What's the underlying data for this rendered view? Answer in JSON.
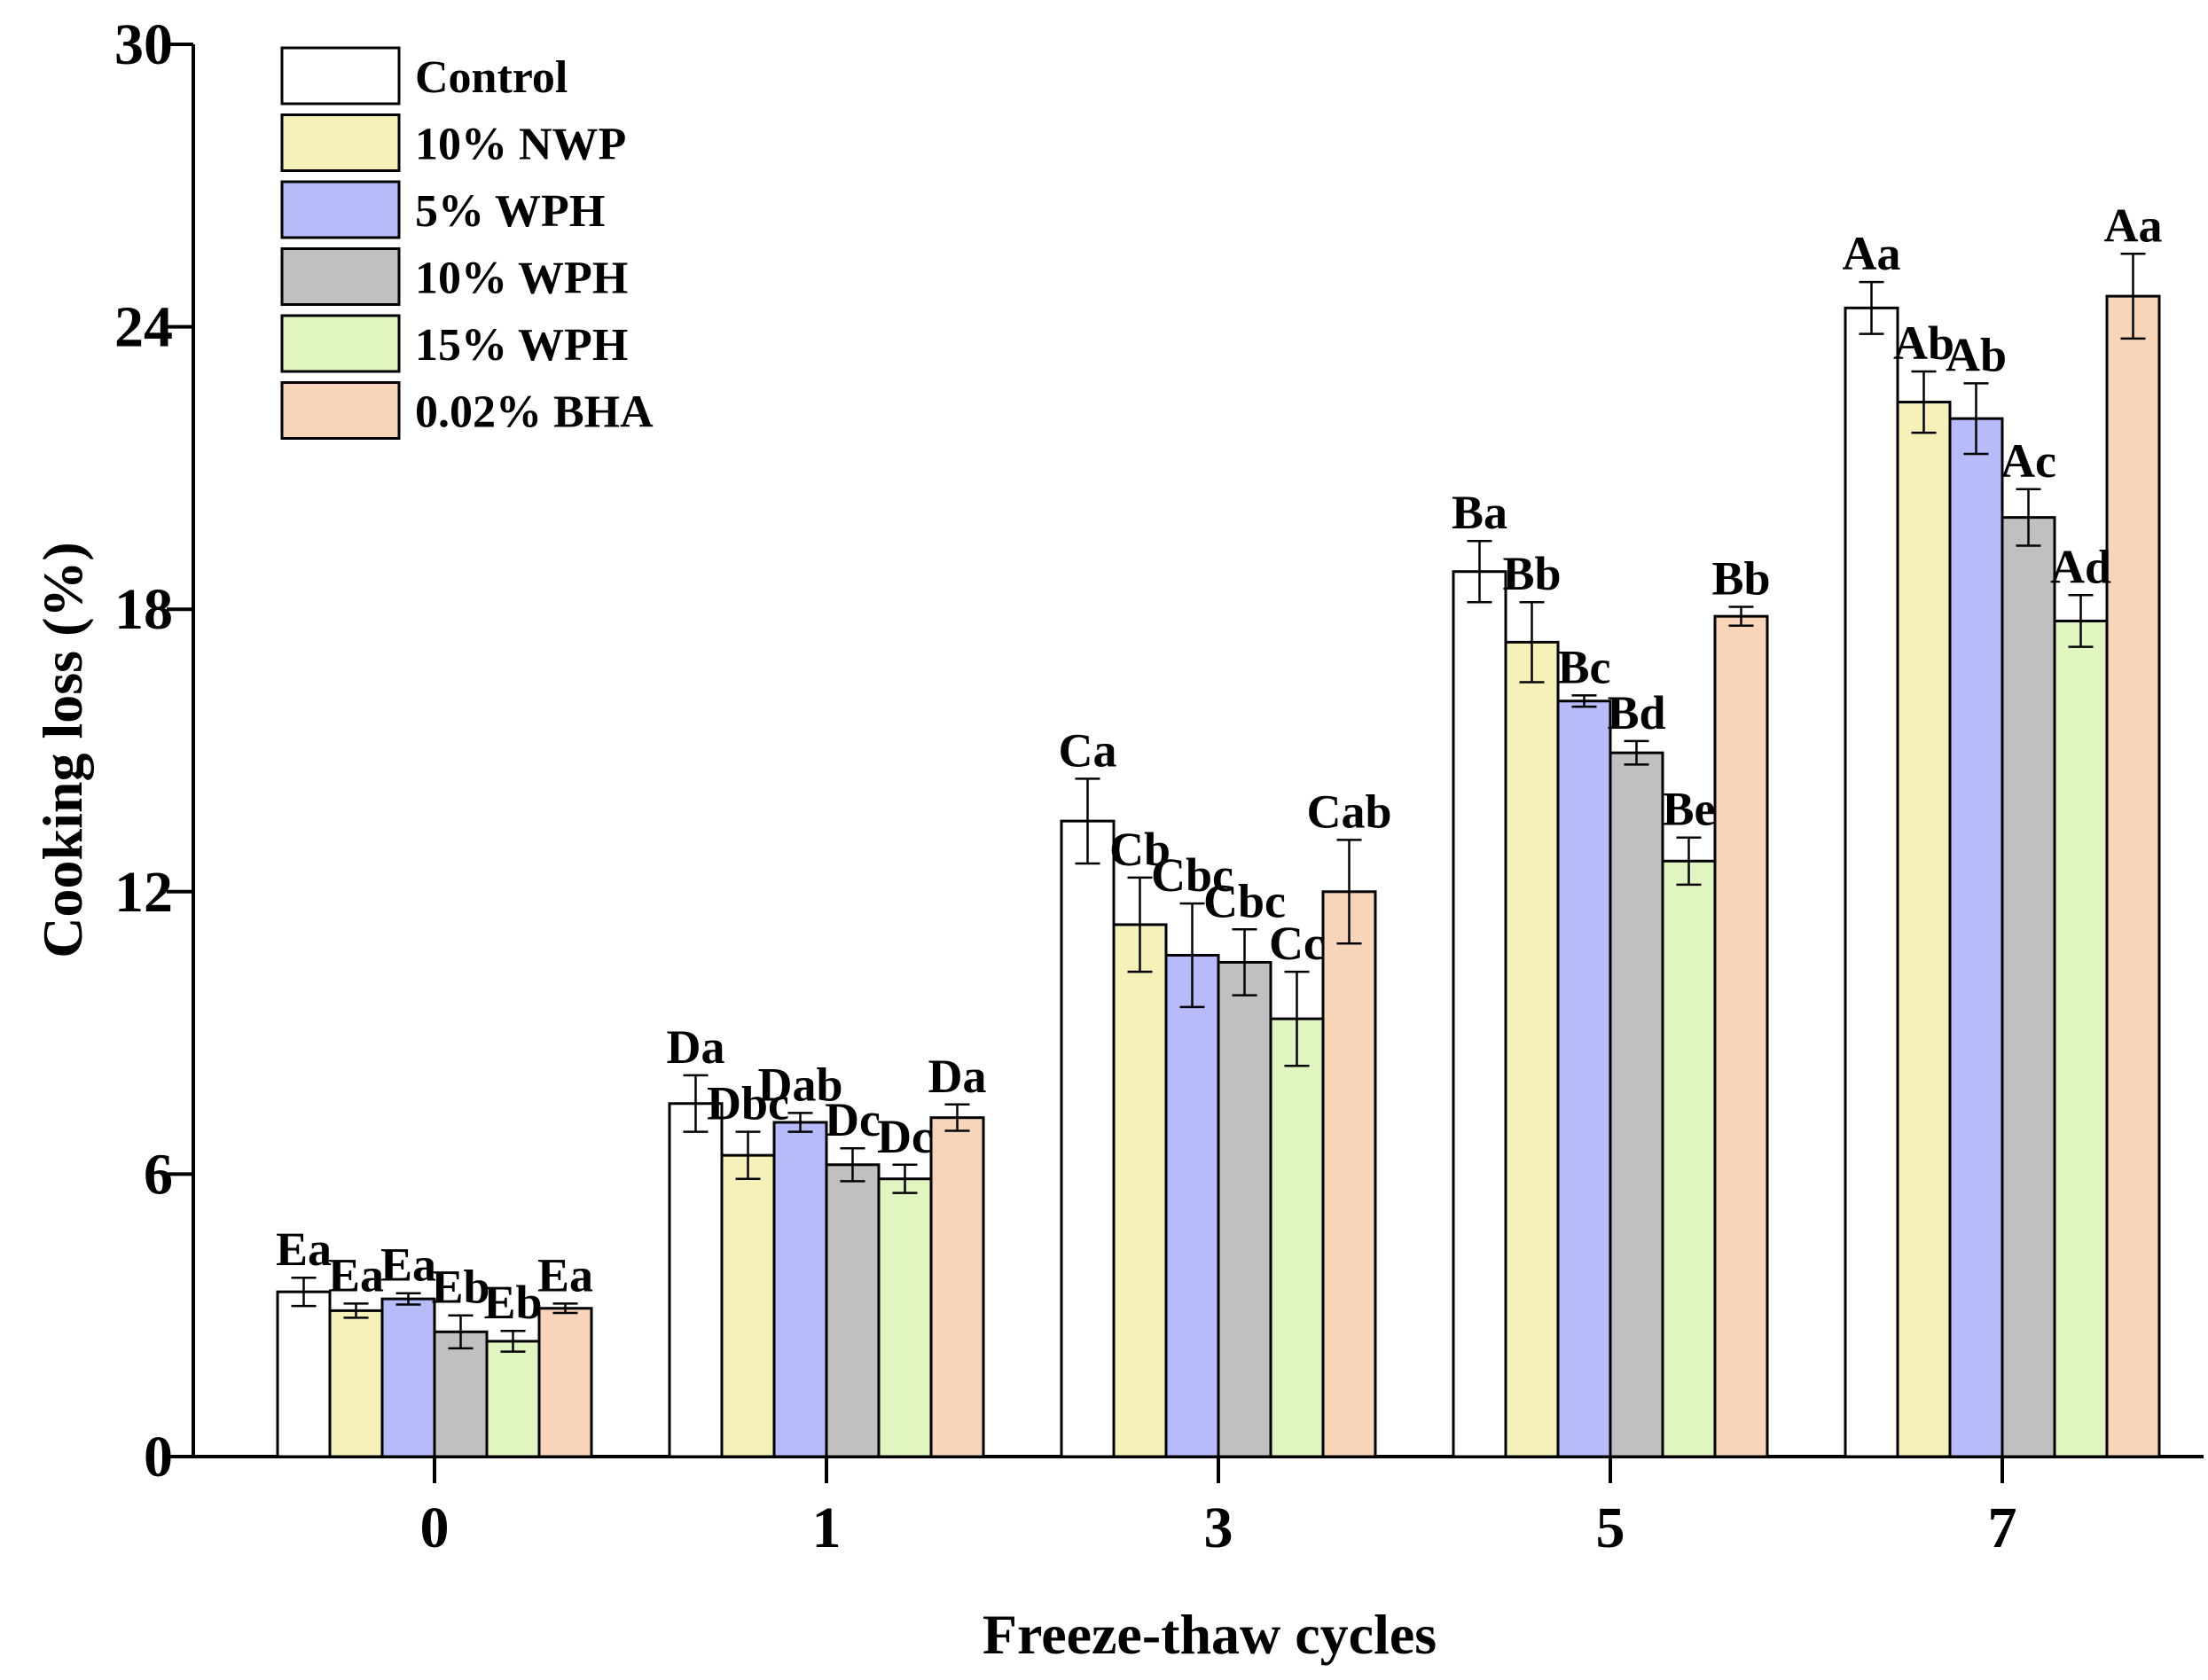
{
  "chart_data": {
    "type": "bar",
    "title": "",
    "xlabel": "Freeze-thaw cycles",
    "ylabel": "Cooking loss (%)",
    "ylim": [
      0,
      30
    ],
    "yticks": [
      0,
      6,
      12,
      18,
      24,
      30
    ],
    "categories": [
      "0",
      "1",
      "3",
      "5",
      "7"
    ],
    "legend_position": "top-left",
    "series": [
      {
        "name": "Control",
        "color": "#ffffff",
        "values": [
          3.5,
          7.5,
          13.5,
          18.8,
          24.4
        ],
        "errors": [
          0.3,
          0.6,
          0.9,
          0.65,
          0.55
        ],
        "labels": [
          "Ea",
          "Da",
          "Ca",
          "Ba",
          "Aa"
        ]
      },
      {
        "name": "10% NWP",
        "color": "#f5f1b8",
        "values": [
          3.1,
          6.4,
          11.3,
          17.3,
          22.4
        ],
        "errors": [
          0.15,
          0.5,
          1.0,
          0.85,
          0.65
        ],
        "labels": [
          "Ea",
          "Dbc",
          "Cb",
          "Bb",
          "Ab"
        ]
      },
      {
        "name": "5% WPH",
        "color": "#b8bbfa",
        "values": [
          3.35,
          7.1,
          10.65,
          16.05,
          22.05
        ],
        "errors": [
          0.12,
          0.2,
          1.1,
          0.12,
          0.75
        ],
        "labels": [
          "Ea",
          "Dab",
          "Cbc",
          "Bc",
          "Ab"
        ]
      },
      {
        "name": "10% WPH",
        "color": "#c0c0c0",
        "values": [
          2.65,
          6.2,
          10.5,
          14.95,
          19.95
        ],
        "errors": [
          0.35,
          0.35,
          0.7,
          0.25,
          0.6
        ],
        "labels": [
          "Eb",
          "Dc",
          "Cbc",
          "Bd",
          "Ac"
        ]
      },
      {
        "name": "15% WPH",
        "color": "#e1f5c0",
        "values": [
          2.45,
          5.9,
          9.3,
          12.65,
          17.75
        ],
        "errors": [
          0.22,
          0.3,
          1.0,
          0.5,
          0.55
        ],
        "labels": [
          "Eb",
          "Dc",
          "Cc",
          "Be",
          "Ad"
        ]
      },
      {
        "name": "0.02% BHA",
        "color": "#f8d5b8",
        "values": [
          3.15,
          7.2,
          12.0,
          17.85,
          24.65
        ],
        "errors": [
          0.1,
          0.28,
          1.1,
          0.2,
          0.9
        ],
        "labels": [
          "Ea",
          "Da",
          "Cab",
          "Bb",
          "Aa"
        ]
      }
    ]
  }
}
